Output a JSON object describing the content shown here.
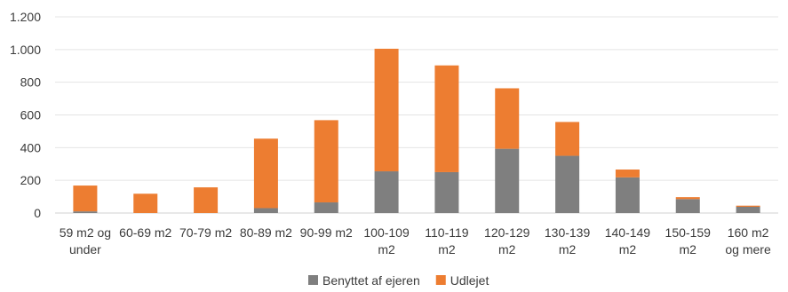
{
  "chart_data": {
    "type": "bar",
    "stacked": true,
    "title": "",
    "xlabel": "",
    "ylabel": "",
    "ylim": [
      0,
      1200
    ],
    "yticks": [
      0,
      200,
      400,
      600,
      800,
      1000,
      1200
    ],
    "ytick_labels": [
      "0",
      "200",
      "400",
      "600",
      "800",
      "1.000",
      "1.200"
    ],
    "grid": true,
    "legend_position": "bottom",
    "categories": [
      [
        "59 m2 og",
        "under"
      ],
      [
        "60-69 m2"
      ],
      [
        "70-79 m2"
      ],
      [
        "80-89 m2"
      ],
      [
        "90-99 m2"
      ],
      [
        "100-109",
        "m2"
      ],
      [
        "110-119",
        "m2"
      ],
      [
        "120-129",
        "m2"
      ],
      [
        "130-139",
        "m2"
      ],
      [
        "140-149",
        "m2"
      ],
      [
        "150-159",
        "m2"
      ],
      [
        "160 m2",
        "og mere"
      ]
    ],
    "series": [
      {
        "name": "Benyttet af ejeren",
        "color": "#7f7f7f",
        "values": [
          10,
          0,
          0,
          30,
          65,
          255,
          250,
          393,
          350,
          218,
          85,
          38
        ]
      },
      {
        "name": "Udlejet",
        "color": "#ed7d31",
        "values": [
          158,
          118,
          157,
          425,
          503,
          750,
          653,
          370,
          207,
          48,
          12,
          7
        ]
      }
    ]
  }
}
